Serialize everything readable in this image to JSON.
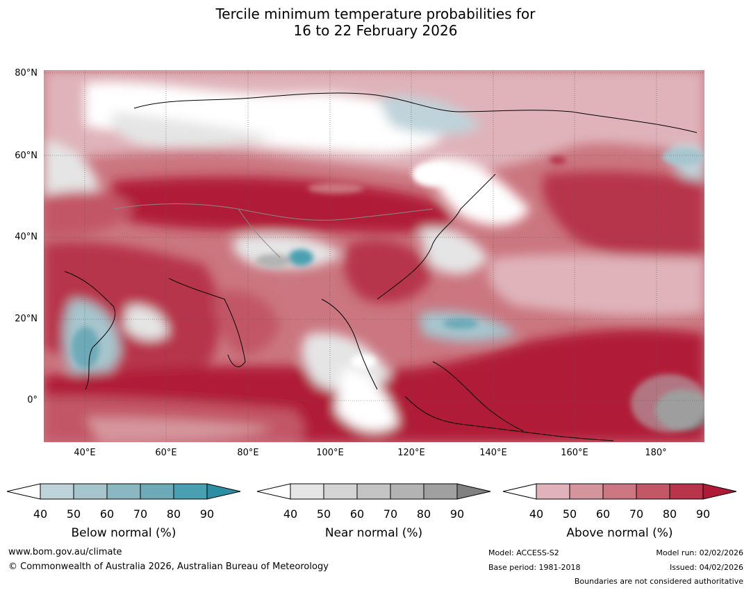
{
  "title_line1": "Tercile minimum temperature probabilities for",
  "title_line2": "16 to 22 February 2026",
  "lat_labels": [
    {
      "text": "80°N",
      "lat": 80
    },
    {
      "text": "60°N",
      "lat": 60
    },
    {
      "text": "40°N",
      "lat": 40
    },
    {
      "text": "20°N",
      "lat": 20
    },
    {
      "text": "0°",
      "lat": 0
    }
  ],
  "lon_labels": [
    {
      "text": "40°E",
      "lon": 40
    },
    {
      "text": "60°E",
      "lon": 60
    },
    {
      "text": "80°E",
      "lon": 80
    },
    {
      "text": "100°E",
      "lon": 100
    },
    {
      "text": "120°E",
      "lon": 120
    },
    {
      "text": "140°E",
      "lon": 140
    },
    {
      "text": "160°E",
      "lon": 160
    },
    {
      "text": "180°",
      "lon": 180
    }
  ],
  "colorbars": [
    {
      "name": "below",
      "label": "Below normal (%)",
      "ticks": [
        "40",
        "50",
        "60",
        "70",
        "80",
        "90"
      ],
      "colors": [
        "#bfd3da",
        "#a6c5cd",
        "#8bb7c2",
        "#6daab8",
        "#48a0b1",
        "#2b8fa3"
      ]
    },
    {
      "name": "near",
      "label": "Near normal (%)",
      "ticks": [
        "40",
        "50",
        "60",
        "70",
        "80",
        "90"
      ],
      "colors": [
        "#e5e5e5",
        "#d4d4d4",
        "#c4c4c4",
        "#b3b3b3",
        "#a0a0a0",
        "#808080"
      ]
    },
    {
      "name": "above",
      "label": "Above normal (%)",
      "ticks": [
        "40",
        "50",
        "60",
        "70",
        "80",
        "90"
      ],
      "colors": [
        "#dfb3b9",
        "#d5959c",
        "#cb7680",
        "#c25766",
        "#b7344b",
        "#b01a37"
      ]
    }
  ],
  "footer": {
    "website": "www.bom.gov.au/climate",
    "copyright": "© Commonwealth of Australia 2026, Australian Bureau of Meteorology",
    "model": "Model: ACCESS-S2",
    "base_period": "Base period: 1981-2018",
    "model_run": "Model run: 02/02/2026",
    "issued": "Issued: 04/02/2026",
    "boundaries": "Boundaries are not considered authoritative"
  }
}
